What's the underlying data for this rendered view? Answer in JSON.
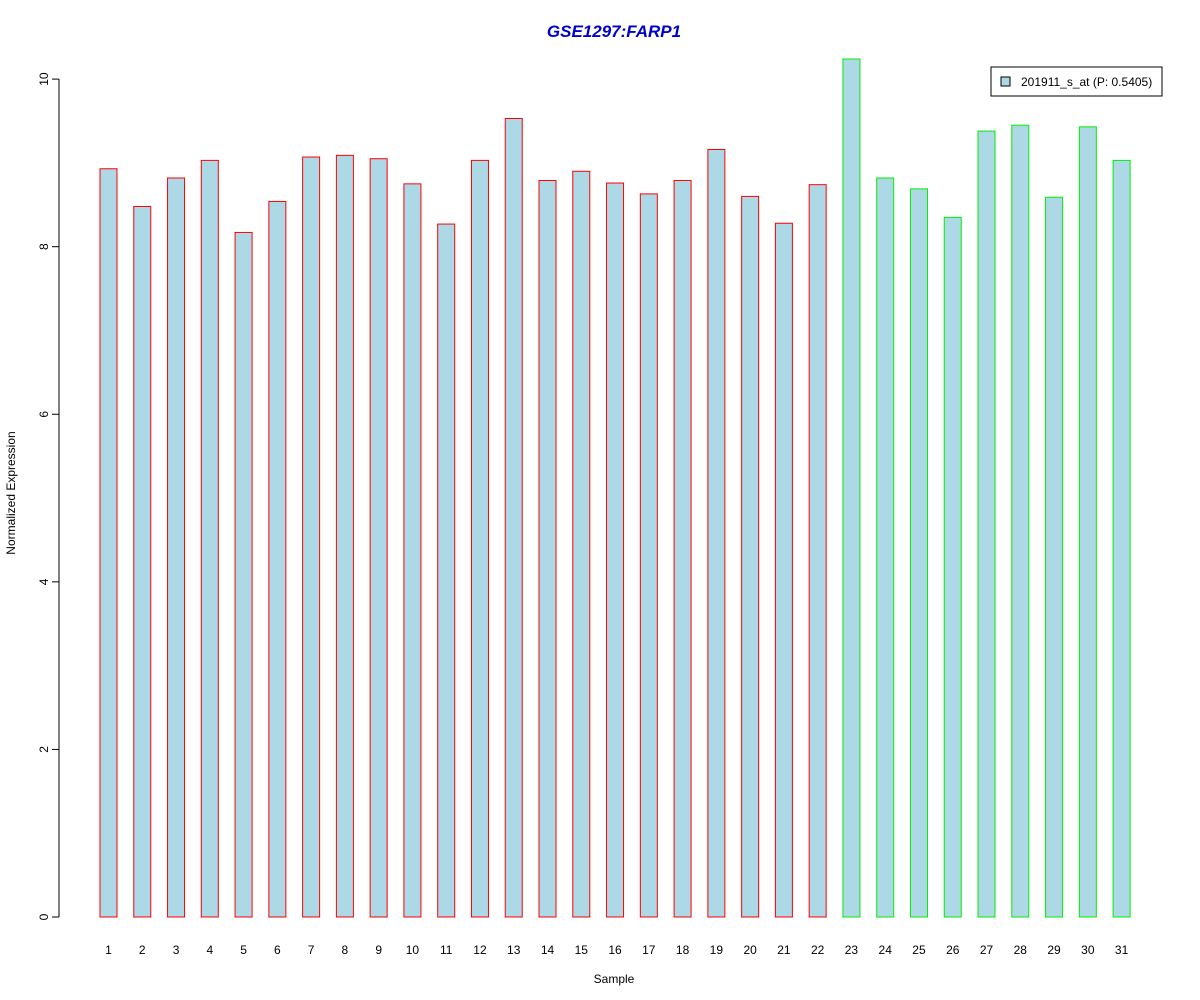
{
  "chart_data": {
    "type": "bar",
    "title": "GSE1297:FARP1",
    "xlabel": "Sample",
    "ylabel": "Normalized Expression",
    "categories": [
      "1",
      "2",
      "3",
      "4",
      "5",
      "6",
      "7",
      "8",
      "9",
      "10",
      "11",
      "12",
      "13",
      "14",
      "15",
      "16",
      "17",
      "18",
      "19",
      "20",
      "21",
      "22",
      "23",
      "24",
      "25",
      "26",
      "27",
      "28",
      "29",
      "30",
      "31"
    ],
    "series": [
      {
        "name": "201911_s_at (P: 0.5405)",
        "values": [
          8.93,
          8.48,
          8.82,
          9.03,
          8.17,
          8.54,
          9.07,
          9.09,
          9.05,
          8.75,
          8.27,
          9.03,
          9.53,
          8.79,
          8.9,
          8.76,
          8.63,
          8.79,
          9.16,
          8.6,
          8.28,
          8.74,
          10.24,
          8.82,
          8.69,
          8.35,
          9.38,
          9.45,
          8.59,
          9.43,
          9.03
        ]
      }
    ],
    "groups": [
      {
        "samples": "1-22",
        "border_color": "#ff0000"
      },
      {
        "samples": "23-31",
        "border_color": "#00ee00"
      }
    ],
    "ylim": [
      0,
      10.24
    ],
    "yticks": [
      0,
      2,
      4,
      6,
      8,
      10
    ],
    "grid": false,
    "legend_position": "top-right",
    "colors": {
      "bar_fill": "#add8e6",
      "group1_border": "#ff0000",
      "group2_border": "#00ee00",
      "title": "#0000cc",
      "axis": "#000000"
    }
  }
}
